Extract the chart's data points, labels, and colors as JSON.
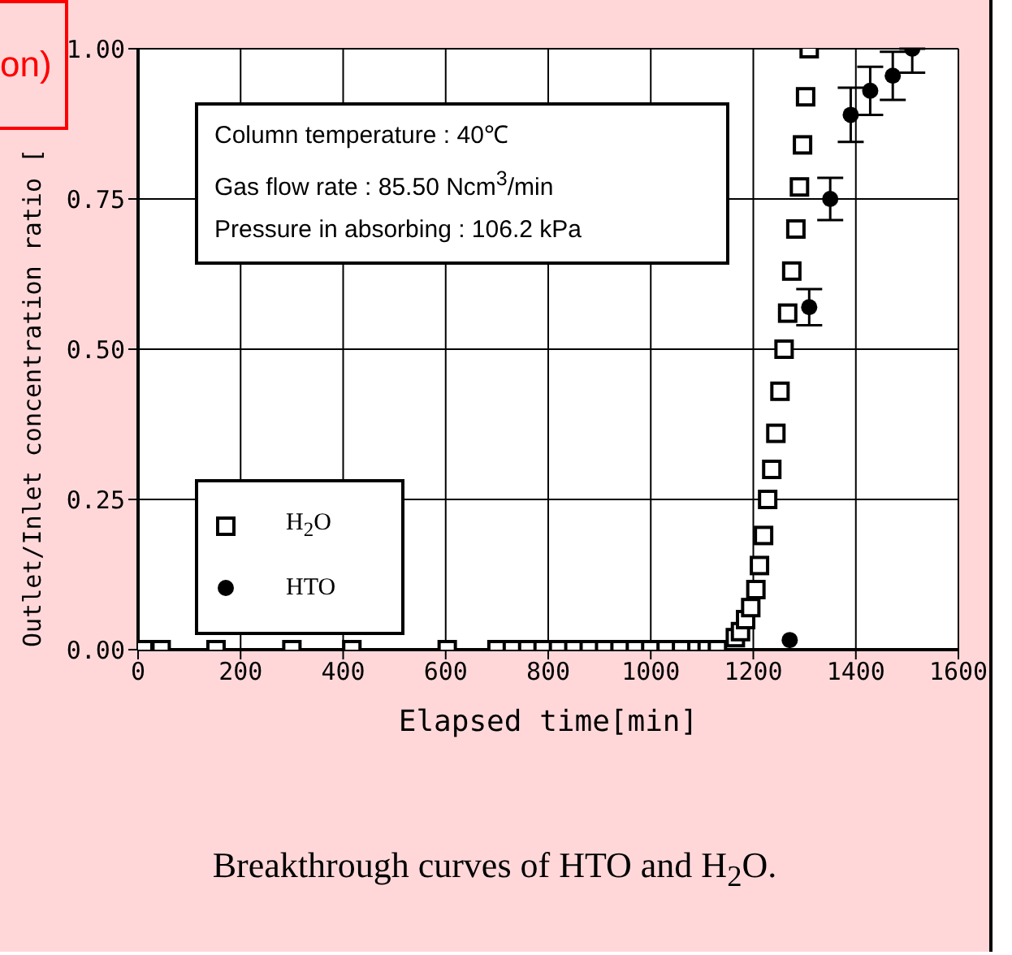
{
  "chart_data": {
    "type": "scatter",
    "xlabel": "Elapsed time[min]",
    "ylabel": "Outlet/Inlet concentration ratio [",
    "xlim": [
      0,
      1600
    ],
    "xticks": [
      0,
      200,
      400,
      600,
      800,
      1000,
      1200,
      1400,
      1600
    ],
    "ylim": [
      0,
      1
    ],
    "yticks": [
      {
        "value": 0,
        "label": "0.00"
      },
      {
        "value": 0.25,
        "label": "0.25"
      },
      {
        "value": 0.5,
        "label": "0.50"
      },
      {
        "value": 0.75,
        "label": "0.75"
      },
      {
        "value": 1,
        "label": "1.00"
      }
    ],
    "grid": true,
    "legend": "bottom left",
    "annotations": [
      "Column temperature : 40℃",
      "Gas flow rate : 85.50 Ncm$^{3}$/min",
      "Pressure in absorbing : 106.2 kPa",
      "Breakthrough curves of HTO and H$_{2}$O.",
      "on)"
    ],
    "series": [
      {
        "name": "H$_{2}$O",
        "color": "#000000",
        "marker": "square",
        "x": [
          11,
          45,
          152,
          300,
          417,
          603,
          700,
          730,
          760,
          790,
          820,
          850,
          880,
          910,
          940,
          970,
          1000,
          1030,
          1060,
          1090,
          1110,
          1130,
          1165,
          1175,
          1185,
          1195,
          1205,
          1212,
          1220,
          1228,
          1236,
          1244,
          1252,
          1260,
          1267,
          1275,
          1283,
          1290,
          1296,
          1302,
          1309
        ],
        "values": [
          0,
          0,
          0,
          0,
          0,
          0,
          0,
          0,
          0,
          0,
          0,
          0,
          0,
          0,
          0,
          0,
          0,
          0,
          0,
          0,
          0,
          0,
          0.02,
          0.03,
          0.05,
          0.07,
          0.1,
          0.14,
          0.19,
          0.25,
          0.3,
          0.36,
          0.43,
          0.5,
          0.56,
          0.63,
          0.7,
          0.77,
          0.84,
          0.92,
          1
        ]
      },
      {
        "name": "HTO",
        "color": "#000000",
        "marker": "circle",
        "x": [
          1271,
          1309,
          1350,
          1390,
          1428,
          1472,
          1510
        ],
        "values": [
          0.016,
          0.57,
          0.75,
          0.89,
          0.93,
          0.955,
          1
        ],
        "errors": [
          null,
          0.03,
          0.035,
          0.045,
          0.04,
          0.04,
          [
            0.96,
            1
          ]
        ]
      }
    ]
  }
}
